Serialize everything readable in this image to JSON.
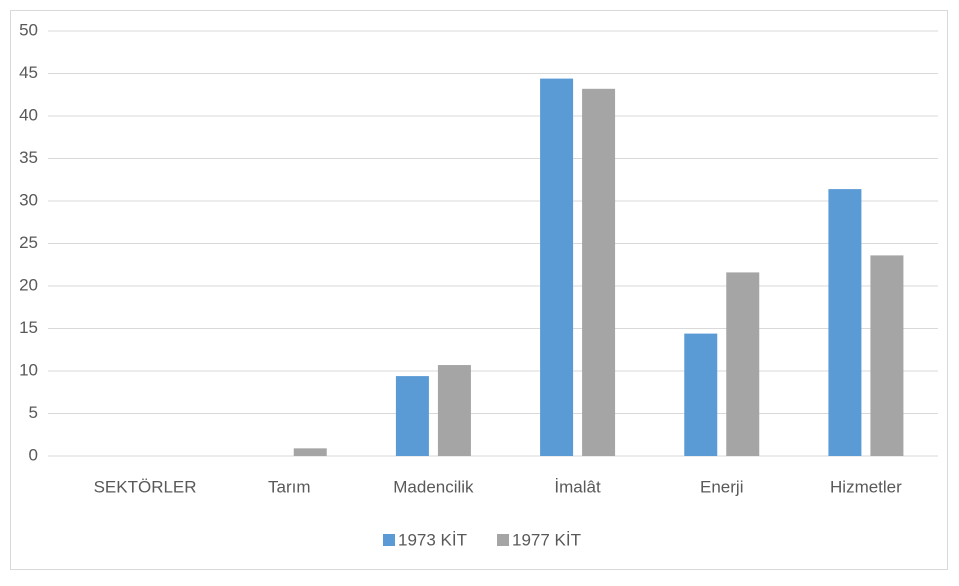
{
  "chart_data": {
    "type": "bar",
    "categories": [
      "SEKTÖRLER",
      "Tarım",
      "Madencilik",
      "İmalât",
      "Enerji",
      "Hizmetler"
    ],
    "series": [
      {
        "name": "1973 KİT",
        "color": "#5b9bd5",
        "values": [
          null,
          0,
          9.4,
          44.4,
          14.4,
          31.4
        ]
      },
      {
        "name": "1977 KİT",
        "color": "#a5a5a5",
        "values": [
          null,
          0.9,
          10.7,
          43.2,
          21.6,
          23.6
        ]
      }
    ],
    "ylim": [
      0,
      50
    ],
    "yticks": [
      0,
      5,
      10,
      15,
      20,
      25,
      30,
      35,
      40,
      45,
      50
    ],
    "grid": true,
    "legend": "bottom"
  }
}
